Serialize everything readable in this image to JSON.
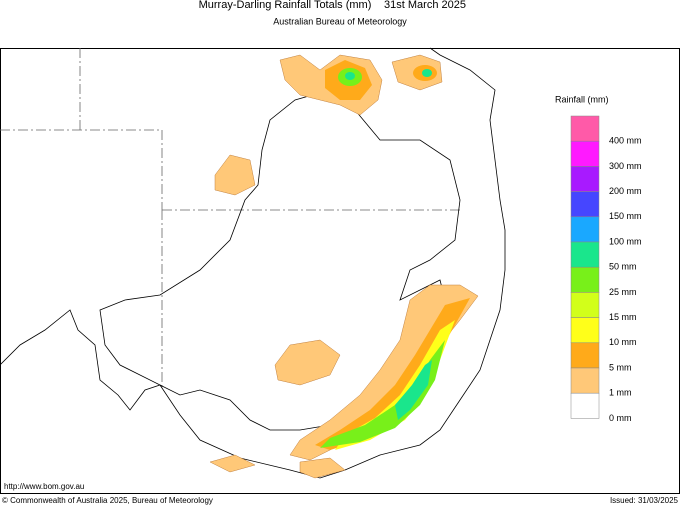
{
  "header": {
    "title": "Murray-Darling Rainfall Totals (mm)",
    "date": "31st March 2025",
    "subtitle": "Australian Bureau of Meteorology"
  },
  "legend": {
    "title": "Rainfall (mm)",
    "items": [
      {
        "label": "400 mm",
        "color": "#ff5aa8"
      },
      {
        "label": "300 mm",
        "color": "#ff1aff"
      },
      {
        "label": "200 mm",
        "color": "#a81aff"
      },
      {
        "label": "150 mm",
        "color": "#4646ff"
      },
      {
        "label": "100 mm",
        "color": "#1aa8ff"
      },
      {
        "label": "50 mm",
        "color": "#1ae68c"
      },
      {
        "label": "25 mm",
        "color": "#78f01a"
      },
      {
        "label": "15 mm",
        "color": "#d2ff1a"
      },
      {
        "label": "10 mm",
        "color": "#ffff1a"
      },
      {
        "label": "5 mm",
        "color": "#ffaa1a"
      },
      {
        "label": "1 mm",
        "color": "#ffc878"
      },
      {
        "label": "0 mm",
        "color": "#ffffff"
      }
    ]
  },
  "footer": {
    "url": "http://www.bom.gov.au",
    "copyright": "© Commonwealth of Australia 2025, Bureau of Meteorology",
    "issued": "Issued: 31/03/2025"
  }
}
